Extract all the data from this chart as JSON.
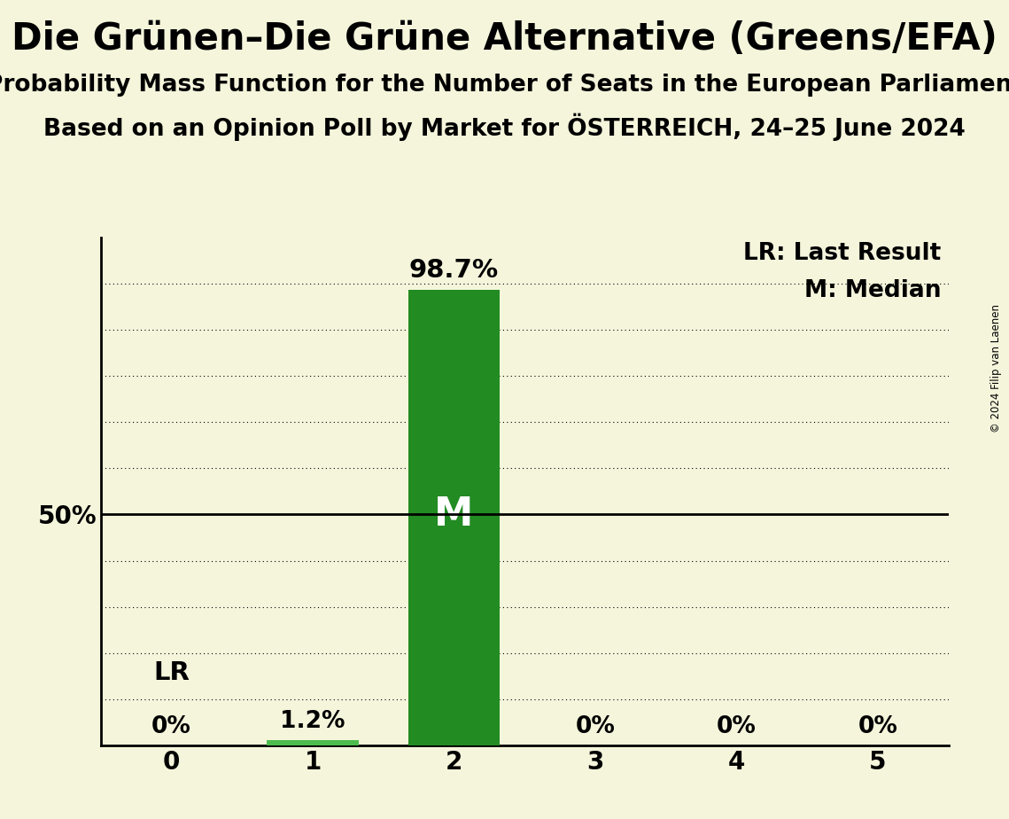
{
  "title": "Die Grünen–Die Grüne Alternative (Greens/EFA)",
  "subtitle1": "Probability Mass Function for the Number of Seats in the European Parliament",
  "subtitle2": "Based on an Opinion Poll by Market for ÖSTERREICH, 24–25 June 2024",
  "copyright": "© 2024 Filip van Laenen",
  "categories": [
    0,
    1,
    2,
    3,
    4,
    5
  ],
  "values": [
    0.0,
    1.2,
    98.7,
    0.0,
    0.0,
    0.0
  ],
  "median_bar": 2,
  "last_result_bar": 1,
  "median_label": "M",
  "lr_label": "LR",
  "legend_lr": "LR: Last Result",
  "legend_m": "M: Median",
  "bar_color_main": "#228B22",
  "bar_color_lr": "#4DBD4D",
  "background_color": "#F5F5DC",
  "ylim": [
    0,
    110
  ],
  "yticks": [
    0,
    10,
    20,
    30,
    40,
    50,
    60,
    70,
    80,
    90,
    100
  ],
  "hline_50": 50,
  "title_fontsize": 30,
  "subtitle_fontsize": 19,
  "label_fontsize": 21,
  "tick_fontsize": 20,
  "annotation_fontsize": 19,
  "legend_fontsize": 19,
  "bar_width": 0.65
}
